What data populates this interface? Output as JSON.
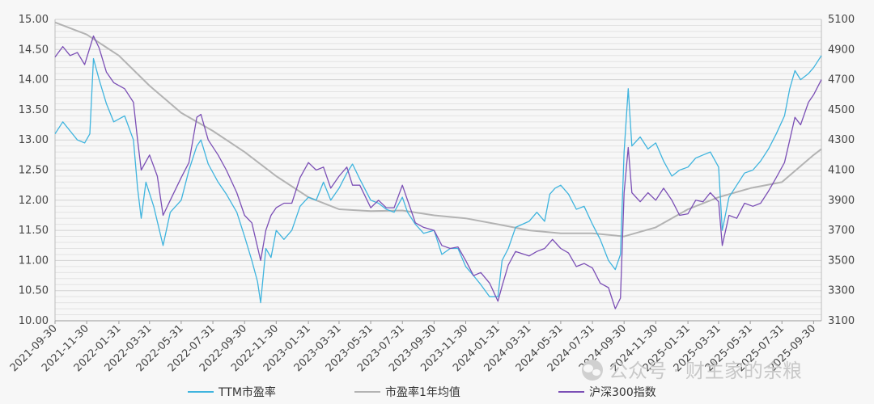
{
  "chart_data": {
    "type": "line",
    "title": "",
    "x_ticks": [
      "2021-09-30",
      "2021-11-30",
      "2022-01-31",
      "2022-03-31",
      "2022-05-31",
      "2022-07-31",
      "2022-09-30",
      "2022-11-30",
      "2023-01-31",
      "2023-03-31",
      "2023-05-31",
      "2023-07-31",
      "2023-09-30",
      "2023-11-30",
      "2024-01-31",
      "2024-03-31",
      "2024-05-31",
      "2024-07-31",
      "2024-09-30",
      "2024-11-30",
      "2025-01-31",
      "2025-03-31",
      "2025-05-31",
      "2025-07-31",
      "2025-09-30"
    ],
    "y_left": {
      "min": 10.0,
      "max": 15.0,
      "ticks": [
        "10.00",
        "10.50",
        "11.00",
        "11.50",
        "12.00",
        "12.50",
        "13.00",
        "13.50",
        "14.00",
        "14.50",
        "15.00"
      ]
    },
    "y_right": {
      "min": 3100,
      "max": 5100,
      "ticks": [
        "3100",
        "3300",
        "3500",
        "3700",
        "3900",
        "4100",
        "4300",
        "4500",
        "4700",
        "4900",
        "5100"
      ]
    },
    "x_range": [
      "2021-09-30",
      "2025-10-15"
    ],
    "gridlines": "horizontal-minor",
    "legend_position": "bottom",
    "series": [
      {
        "name": "TTM市盈率",
        "axis": "left",
        "color": "#3fb4de",
        "points": [
          [
            "2021-09-30",
            13.1
          ],
          [
            "2021-10-15",
            13.3
          ],
          [
            "2021-10-29",
            13.15
          ],
          [
            "2021-11-12",
            13.0
          ],
          [
            "2021-11-26",
            12.95
          ],
          [
            "2021-12-06",
            13.1
          ],
          [
            "2021-12-13",
            14.35
          ],
          [
            "2021-12-24",
            14.0
          ],
          [
            "2022-01-07",
            13.6
          ],
          [
            "2022-01-21",
            13.3
          ],
          [
            "2022-02-11",
            13.4
          ],
          [
            "2022-02-28",
            13.0
          ],
          [
            "2022-03-08",
            12.2
          ],
          [
            "2022-03-15",
            11.7
          ],
          [
            "2022-03-24",
            12.3
          ],
          [
            "2022-04-08",
            11.9
          ],
          [
            "2022-04-26",
            11.25
          ],
          [
            "2022-05-10",
            11.8
          ],
          [
            "2022-05-31",
            12.0
          ],
          [
            "2022-06-15",
            12.5
          ],
          [
            "2022-06-30",
            12.9
          ],
          [
            "2022-07-08",
            13.0
          ],
          [
            "2022-07-22",
            12.6
          ],
          [
            "2022-08-10",
            12.3
          ],
          [
            "2022-08-26",
            12.1
          ],
          [
            "2022-09-15",
            11.8
          ],
          [
            "2022-09-30",
            11.4
          ],
          [
            "2022-10-14",
            11.0
          ],
          [
            "2022-10-25",
            10.65
          ],
          [
            "2022-10-31",
            10.3
          ],
          [
            "2022-11-10",
            11.2
          ],
          [
            "2022-11-20",
            11.05
          ],
          [
            "2022-11-30",
            11.5
          ],
          [
            "2022-12-15",
            11.35
          ],
          [
            "2022-12-30",
            11.5
          ],
          [
            "2023-01-15",
            11.9
          ],
          [
            "2023-01-31",
            12.05
          ],
          [
            "2023-02-15",
            12.0
          ],
          [
            "2023-03-01",
            12.3
          ],
          [
            "2023-03-15",
            12.0
          ],
          [
            "2023-03-31",
            12.2
          ],
          [
            "2023-04-15",
            12.45
          ],
          [
            "2023-04-26",
            12.6
          ],
          [
            "2023-05-10",
            12.35
          ],
          [
            "2023-05-31",
            12.0
          ],
          [
            "2023-06-15",
            11.95
          ],
          [
            "2023-06-30",
            11.85
          ],
          [
            "2023-07-15",
            11.8
          ],
          [
            "2023-07-31",
            12.05
          ],
          [
            "2023-08-10",
            11.8
          ],
          [
            "2023-08-25",
            11.6
          ],
          [
            "2023-09-10",
            11.45
          ],
          [
            "2023-09-30",
            11.5
          ],
          [
            "2023-10-15",
            11.1
          ],
          [
            "2023-10-31",
            11.2
          ],
          [
            "2023-11-15",
            11.2
          ],
          [
            "2023-11-30",
            10.9
          ],
          [
            "2023-12-15",
            10.75
          ],
          [
            "2023-12-29",
            10.6
          ],
          [
            "2024-01-15",
            10.4
          ],
          [
            "2024-01-31",
            10.4
          ],
          [
            "2024-02-08",
            11.0
          ],
          [
            "2024-02-20",
            11.2
          ],
          [
            "2024-03-05",
            11.55
          ],
          [
            "2024-03-31",
            11.65
          ],
          [
            "2024-04-15",
            11.8
          ],
          [
            "2024-04-30",
            11.65
          ],
          [
            "2024-05-10",
            12.1
          ],
          [
            "2024-05-20",
            12.2
          ],
          [
            "2024-05-31",
            12.25
          ],
          [
            "2024-06-15",
            12.1
          ],
          [
            "2024-06-30",
            11.85
          ],
          [
            "2024-07-15",
            11.9
          ],
          [
            "2024-07-31",
            11.6
          ],
          [
            "2024-08-15",
            11.35
          ],
          [
            "2024-08-31",
            11.0
          ],
          [
            "2024-09-13",
            10.85
          ],
          [
            "2024-09-23",
            11.1
          ],
          [
            "2024-09-30",
            12.8
          ],
          [
            "2024-10-08",
            13.85
          ],
          [
            "2024-10-15",
            12.9
          ],
          [
            "2024-10-31",
            13.05
          ],
          [
            "2024-11-15",
            12.85
          ],
          [
            "2024-11-30",
            12.95
          ],
          [
            "2024-12-15",
            12.65
          ],
          [
            "2024-12-31",
            12.4
          ],
          [
            "2025-01-15",
            12.5
          ],
          [
            "2025-01-31",
            12.55
          ],
          [
            "2025-02-15",
            12.7
          ],
          [
            "2025-03-01",
            12.75
          ],
          [
            "2025-03-15",
            12.8
          ],
          [
            "2025-03-31",
            12.55
          ],
          [
            "2025-04-07",
            11.5
          ],
          [
            "2025-04-20",
            12.05
          ],
          [
            "2025-05-05",
            12.25
          ],
          [
            "2025-05-20",
            12.45
          ],
          [
            "2025-06-05",
            12.5
          ],
          [
            "2025-06-20",
            12.65
          ],
          [
            "2025-07-05",
            12.85
          ],
          [
            "2025-07-20",
            13.1
          ],
          [
            "2025-08-05",
            13.4
          ],
          [
            "2025-08-15",
            13.85
          ],
          [
            "2025-08-25",
            14.15
          ],
          [
            "2025-09-05",
            14.0
          ],
          [
            "2025-09-20",
            14.1
          ],
          [
            "2025-09-30",
            14.2
          ],
          [
            "2025-10-15",
            14.4
          ]
        ]
      },
      {
        "name": "市盈率1年均值",
        "axis": "left",
        "color": "#b3b3b3",
        "points": [
          [
            "2021-09-30",
            14.95
          ],
          [
            "2021-11-30",
            14.75
          ],
          [
            "2022-01-31",
            14.4
          ],
          [
            "2022-03-31",
            13.9
          ],
          [
            "2022-05-31",
            13.45
          ],
          [
            "2022-07-31",
            13.15
          ],
          [
            "2022-09-30",
            12.8
          ],
          [
            "2022-11-30",
            12.4
          ],
          [
            "2023-01-31",
            12.05
          ],
          [
            "2023-03-31",
            11.85
          ],
          [
            "2023-05-31",
            11.82
          ],
          [
            "2023-07-31",
            11.83
          ],
          [
            "2023-09-30",
            11.75
          ],
          [
            "2023-11-30",
            11.7
          ],
          [
            "2024-01-31",
            11.6
          ],
          [
            "2024-03-31",
            11.5
          ],
          [
            "2024-05-31",
            11.45
          ],
          [
            "2024-07-31",
            11.45
          ],
          [
            "2024-09-30",
            11.4
          ],
          [
            "2024-11-30",
            11.55
          ],
          [
            "2025-01-31",
            11.85
          ],
          [
            "2025-03-31",
            12.05
          ],
          [
            "2025-05-31",
            12.2
          ],
          [
            "2025-07-31",
            12.3
          ],
          [
            "2025-09-30",
            12.75
          ],
          [
            "2025-10-15",
            12.85
          ]
        ]
      },
      {
        "name": "沪深300指数",
        "axis": "right",
        "color": "#7b4fb5",
        "points": [
          [
            "2021-09-30",
            4850
          ],
          [
            "2021-10-15",
            4920
          ],
          [
            "2021-10-29",
            4860
          ],
          [
            "2021-11-12",
            4880
          ],
          [
            "2021-11-26",
            4800
          ],
          [
            "2021-12-13",
            4990
          ],
          [
            "2021-12-24",
            4910
          ],
          [
            "2022-01-07",
            4750
          ],
          [
            "2022-01-21",
            4680
          ],
          [
            "2022-02-11",
            4640
          ],
          [
            "2022-02-28",
            4550
          ],
          [
            "2022-03-08",
            4300
          ],
          [
            "2022-03-15",
            4100
          ],
          [
            "2022-03-31",
            4200
          ],
          [
            "2022-04-15",
            4060
          ],
          [
            "2022-04-26",
            3800
          ],
          [
            "2022-05-10",
            3900
          ],
          [
            "2022-05-31",
            4050
          ],
          [
            "2022-06-15",
            4150
          ],
          [
            "2022-06-30",
            4450
          ],
          [
            "2022-07-08",
            4470
          ],
          [
            "2022-07-22",
            4300
          ],
          [
            "2022-08-10",
            4200
          ],
          [
            "2022-08-26",
            4100
          ],
          [
            "2022-09-15",
            3950
          ],
          [
            "2022-09-30",
            3800
          ],
          [
            "2022-10-14",
            3750
          ],
          [
            "2022-10-31",
            3500
          ],
          [
            "2022-11-10",
            3700
          ],
          [
            "2022-11-20",
            3800
          ],
          [
            "2022-11-30",
            3850
          ],
          [
            "2022-12-15",
            3880
          ],
          [
            "2022-12-30",
            3880
          ],
          [
            "2023-01-15",
            4050
          ],
          [
            "2023-01-31",
            4150
          ],
          [
            "2023-02-15",
            4100
          ],
          [
            "2023-03-01",
            4120
          ],
          [
            "2023-03-15",
            3980
          ],
          [
            "2023-03-31",
            4060
          ],
          [
            "2023-04-15",
            4120
          ],
          [
            "2023-04-26",
            4000
          ],
          [
            "2023-05-10",
            4000
          ],
          [
            "2023-05-31",
            3850
          ],
          [
            "2023-06-15",
            3900
          ],
          [
            "2023-06-30",
            3850
          ],
          [
            "2023-07-15",
            3850
          ],
          [
            "2023-07-31",
            4000
          ],
          [
            "2023-08-10",
            3900
          ],
          [
            "2023-08-25",
            3750
          ],
          [
            "2023-09-10",
            3720
          ],
          [
            "2023-09-30",
            3700
          ],
          [
            "2023-10-15",
            3600
          ],
          [
            "2023-10-31",
            3580
          ],
          [
            "2023-11-15",
            3590
          ],
          [
            "2023-11-30",
            3500
          ],
          [
            "2023-12-15",
            3400
          ],
          [
            "2023-12-29",
            3420
          ],
          [
            "2024-01-15",
            3350
          ],
          [
            "2024-01-31",
            3230
          ],
          [
            "2024-02-08",
            3330
          ],
          [
            "2024-02-20",
            3470
          ],
          [
            "2024-03-05",
            3560
          ],
          [
            "2024-03-31",
            3530
          ],
          [
            "2024-04-15",
            3560
          ],
          [
            "2024-04-30",
            3580
          ],
          [
            "2024-05-15",
            3640
          ],
          [
            "2024-05-31",
            3580
          ],
          [
            "2024-06-15",
            3550
          ],
          [
            "2024-06-30",
            3460
          ],
          [
            "2024-07-15",
            3480
          ],
          [
            "2024-07-31",
            3450
          ],
          [
            "2024-08-15",
            3350
          ],
          [
            "2024-08-31",
            3320
          ],
          [
            "2024-09-13",
            3180
          ],
          [
            "2024-09-23",
            3250
          ],
          [
            "2024-09-30",
            3950
          ],
          [
            "2024-10-08",
            4250
          ],
          [
            "2024-10-15",
            3950
          ],
          [
            "2024-10-31",
            3890
          ],
          [
            "2024-11-15",
            3950
          ],
          [
            "2024-11-30",
            3900
          ],
          [
            "2024-12-15",
            3980
          ],
          [
            "2024-12-31",
            3900
          ],
          [
            "2025-01-15",
            3800
          ],
          [
            "2025-01-31",
            3810
          ],
          [
            "2025-02-15",
            3900
          ],
          [
            "2025-03-01",
            3890
          ],
          [
            "2025-03-15",
            3950
          ],
          [
            "2025-03-31",
            3890
          ],
          [
            "2025-04-07",
            3600
          ],
          [
            "2025-04-20",
            3800
          ],
          [
            "2025-05-05",
            3780
          ],
          [
            "2025-05-20",
            3880
          ],
          [
            "2025-06-05",
            3860
          ],
          [
            "2025-06-20",
            3880
          ],
          [
            "2025-07-05",
            3960
          ],
          [
            "2025-07-20",
            4050
          ],
          [
            "2025-08-05",
            4150
          ],
          [
            "2025-08-15",
            4300
          ],
          [
            "2025-08-25",
            4450
          ],
          [
            "2025-09-05",
            4400
          ],
          [
            "2025-09-20",
            4550
          ],
          [
            "2025-09-30",
            4600
          ],
          [
            "2025-10-15",
            4700
          ]
        ]
      }
    ]
  },
  "watermark": {
    "text": "公众号 · 财主家的余粮",
    "icon": "wechat-icon"
  }
}
